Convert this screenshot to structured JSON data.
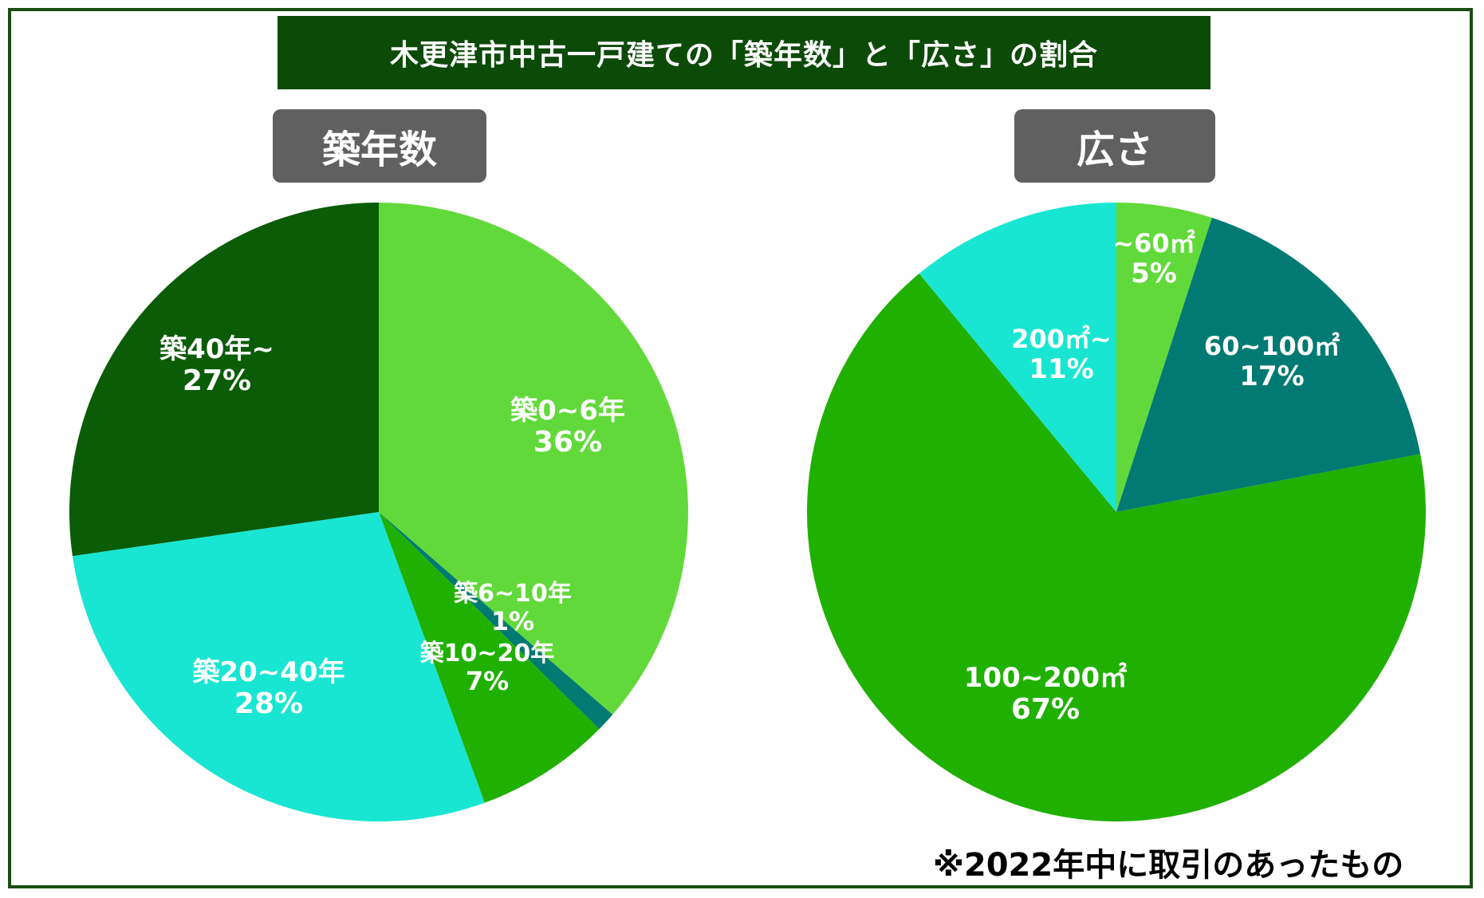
{
  "title": "木更津市中古一戸建ての「築年数」と「広さ」の割合",
  "footnote": "※2022年中に取引のあったもの",
  "chart_data": [
    {
      "type": "pie",
      "title": "築年数",
      "slices": [
        {
          "label": "築0~6年",
          "value": 36,
          "value_label": "36%",
          "color": "#62d93b"
        },
        {
          "label": "築6~10年",
          "value": 1,
          "value_label": "1%",
          "color": "#007a72"
        },
        {
          "label": "築10~20年",
          "value": 7,
          "value_label": "7%",
          "color": "#20b000"
        },
        {
          "label": "築20~40年",
          "value": 28,
          "value_label": "28%",
          "color": "#18e6d2"
        },
        {
          "label": "築40年~",
          "value": 27,
          "value_label": "27%",
          "color": "#0a5c06"
        }
      ]
    },
    {
      "type": "pie",
      "title": "広さ",
      "slices": [
        {
          "label": "~60㎡",
          "value": 5,
          "value_label": "5%",
          "color": "#62d93b"
        },
        {
          "label": "60~100㎡",
          "value": 17,
          "value_label": "17%",
          "color": "#007a72"
        },
        {
          "label": "100~200㎡",
          "value": 67,
          "value_label": "67%",
          "color": "#20b000"
        },
        {
          "label": "200㎡~",
          "value": 11,
          "value_label": "11%",
          "color": "#18e6d2"
        }
      ]
    }
  ]
}
